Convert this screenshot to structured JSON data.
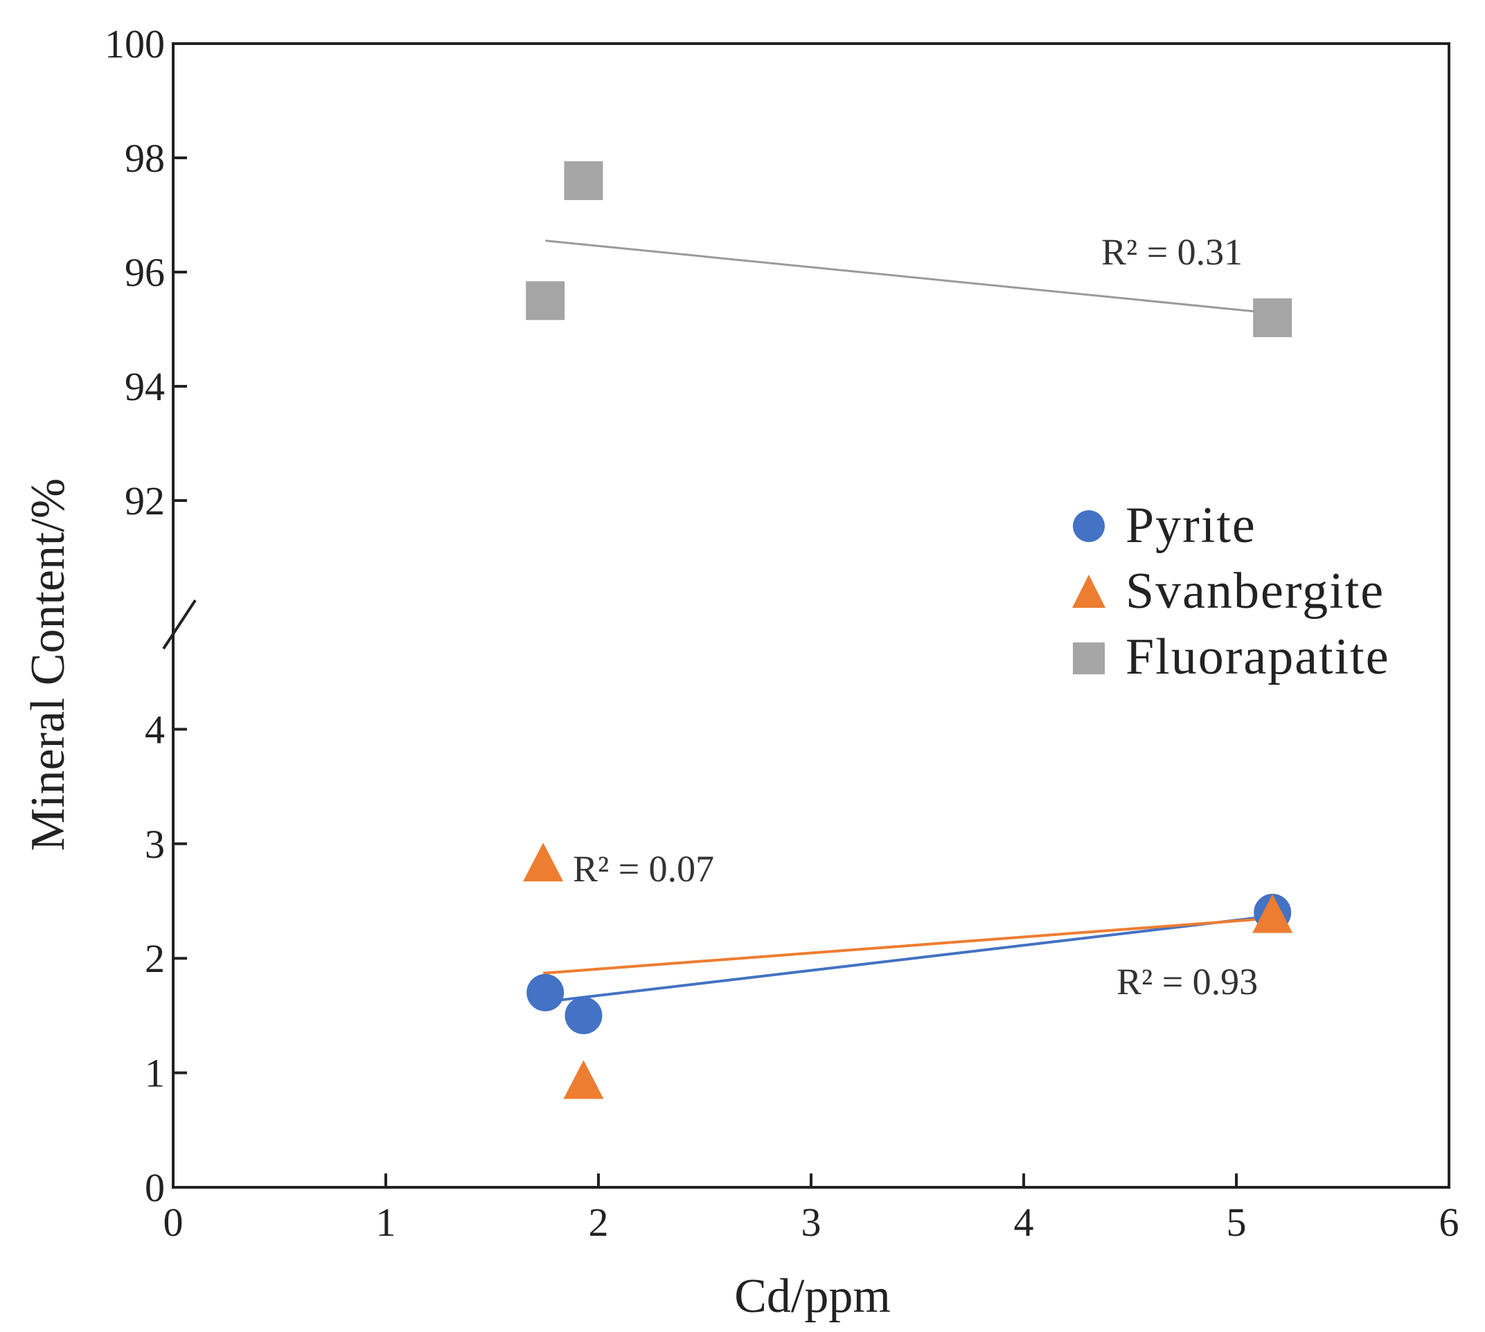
{
  "chart_data": {
    "type": "scatter",
    "xlabel": "Cd/ppm",
    "ylabel": "Mineral Content/%",
    "xlim": [
      0,
      6
    ],
    "x_ticks": [
      "0",
      "1",
      "2",
      "3",
      "4",
      "5",
      "6"
    ],
    "y_axis_break": true,
    "lower_ylim": [
      0,
      5
    ],
    "lower_y_ticks": [
      "0",
      "1",
      "2",
      "3",
      "4"
    ],
    "upper_ylim": [
      90,
      100
    ],
    "upper_y_ticks": [
      "92",
      "94",
      "96",
      "98",
      "100"
    ],
    "legend_position": "right",
    "series": [
      {
        "name": "Pyrite",
        "marker": "circle",
        "color": "#4472C4",
        "points": [
          [
            1.75,
            1.7
          ],
          [
            1.93,
            1.5
          ],
          [
            5.17,
            2.4
          ]
        ],
        "trendline": {
          "x": [
            1.75,
            5.17
          ],
          "y": [
            1.62,
            2.37
          ]
        },
        "r2_label": "R² = 0.93"
      },
      {
        "name": "Svanbergite",
        "marker": "triangle",
        "color": "#ED7D31",
        "points": [
          [
            1.74,
            2.8
          ],
          [
            1.93,
            0.9
          ],
          [
            5.17,
            2.35
          ]
        ],
        "trendline": {
          "x": [
            1.74,
            5.17
          ],
          "y": [
            1.87,
            2.35
          ]
        },
        "r2_label": "R² = 0.07"
      },
      {
        "name": "Fluorapatite",
        "marker": "square",
        "color": "#A5A5A5",
        "points": [
          [
            1.75,
            95.5
          ],
          [
            1.93,
            97.6
          ],
          [
            5.17,
            95.2
          ]
        ],
        "trendline": {
          "x": [
            1.75,
            5.17
          ],
          "y": [
            96.55,
            95.28
          ]
        },
        "r2_label": "R² = 0.31"
      }
    ]
  }
}
